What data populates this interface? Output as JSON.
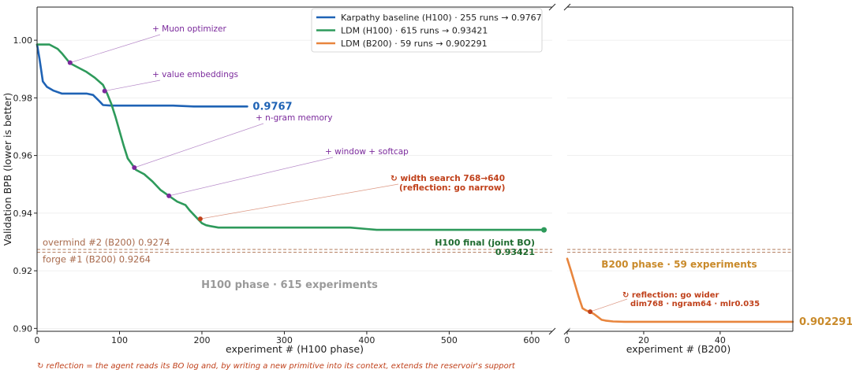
{
  "chart_data": [
    {
      "type": "line",
      "xlabel": "experiment #   (H100 phase)",
      "ylabel": "Validation BPB  (lower is better)",
      "xlim": [
        0,
        625
      ],
      "ylim": [
        0.899,
        1.0115
      ],
      "xticks": [
        0,
        100,
        200,
        300,
        400,
        500,
        600
      ],
      "yticks": [
        0.9,
        0.92,
        0.94,
        0.96,
        0.98,
        1.0
      ],
      "ytick_labels": [
        "0.90",
        "0.92",
        "0.94",
        "0.96",
        "0.98",
        "1.00"
      ],
      "grid": "horizontal",
      "legend": "top-right",
      "series": [
        {
          "name": "Karpathy baseline (H100)",
          "legend_label": "Karpathy baseline (H100)  ·  255 runs  →  0.9767",
          "color": "#1f63b5",
          "x": [
            0,
            3,
            7,
            12,
            20,
            30,
            45,
            60,
            68,
            75,
            80,
            90,
            110,
            130,
            150,
            165,
            190,
            220,
            255
          ],
          "y": [
            0.9985,
            0.9935,
            0.9857,
            0.9838,
            0.9825,
            0.9815,
            0.9815,
            0.9815,
            0.981,
            0.979,
            0.9775,
            0.9773,
            0.9773,
            0.9773,
            0.9773,
            0.9773,
            0.977,
            0.977,
            0.977
          ],
          "end_label": "0.9767"
        },
        {
          "name": "LDM (H100)",
          "legend_label": "LDM (H100)  ·  615 runs  →  0.93421",
          "color": "#2e9a5b",
          "x": [
            0,
            5,
            15,
            25,
            30,
            40,
            50,
            60,
            70,
            80,
            85,
            90,
            95,
            100,
            105,
            110,
            115,
            120,
            130,
            140,
            150,
            160,
            170,
            180,
            185,
            190,
            195,
            200,
            205,
            210,
            220,
            240,
            260,
            300,
            350,
            380,
            400,
            412,
            450,
            500,
            550,
            615
          ],
          "y": [
            0.9985,
            0.9985,
            0.9985,
            0.997,
            0.9955,
            0.992,
            0.9905,
            0.989,
            0.987,
            0.9845,
            0.9815,
            0.978,
            0.9735,
            0.9685,
            0.9635,
            0.959,
            0.957,
            0.955,
            0.9535,
            0.951,
            0.948,
            0.946,
            0.944,
            0.9428,
            0.941,
            0.9395,
            0.938,
            0.9365,
            0.9358,
            0.9355,
            0.935,
            0.935,
            0.935,
            0.935,
            0.935,
            0.935,
            0.9345,
            0.9342,
            0.9342,
            0.9342,
            0.9342,
            0.9342
          ],
          "end_value": 615
        }
      ],
      "milestones": [
        {
          "x": 40,
          "y": 0.9922,
          "label": "+ Muon optimizer",
          "color": "#7b2a9c"
        },
        {
          "x": 82,
          "y": 0.9824,
          "label": "+ value embeddings",
          "color": "#7b2a9c"
        },
        {
          "x": 118,
          "y": 0.9558,
          "label": "+ n-gram memory",
          "color": "#7b2a9c"
        },
        {
          "x": 160,
          "y": 0.946,
          "label": "+ window + softcap",
          "color": "#7b2a9c"
        },
        {
          "x": 198,
          "y": 0.938,
          "label": "↻ width search 768→640",
          "label2": "(reflection: go narrow)",
          "color": "#c0411b"
        }
      ],
      "reference_lines": [
        {
          "y": 0.9274,
          "label": "overmind #2 (B200)  0.9274",
          "color": "#b0785a"
        },
        {
          "y": 0.9264,
          "label": "forge #1 (B200)  0.9264",
          "color": "#b0785a"
        }
      ],
      "annotations": {
        "final_label": "H100 final (joint BO)",
        "final_value": "0.93421",
        "final_color": "#1d6a2e",
        "phase_label": "H100 phase  ·  615 experiments"
      }
    },
    {
      "type": "line",
      "xlabel": "experiment #   (B200)",
      "xlim": [
        0,
        59
      ],
      "ylim": [
        0.899,
        1.0115
      ],
      "xticks": [
        0,
        20,
        40
      ],
      "grid": "horizontal",
      "series": [
        {
          "name": "LDM (B200)",
          "legend_label": "LDM (B200)  ·  59 runs  →  0.902291",
          "color": "#e8853d",
          "x": [
            0,
            1,
            2,
            3,
            4,
            5,
            6,
            7,
            8,
            9,
            10,
            12,
            15,
            20,
            30,
            40,
            50,
            59
          ],
          "y": [
            0.9242,
            0.92,
            0.9155,
            0.911,
            0.907,
            0.9062,
            0.9057,
            0.905,
            0.904,
            0.903,
            0.9027,
            0.9024,
            0.9023,
            0.9023,
            0.9023,
            0.9023,
            0.9023,
            0.9023
          ],
          "end_label": "0.902291"
        }
      ],
      "milestones": [
        {
          "x": 6,
          "y": 0.9058,
          "label": "↻ reflection: go wider",
          "label2": "dim768 · ngram64 · mlr0.035",
          "color": "#c0411b"
        }
      ],
      "reference_lines": [
        {
          "y": 0.9274,
          "color": "#b0785a"
        },
        {
          "y": 0.9264,
          "color": "#b0785a"
        }
      ],
      "annotations": {
        "phase_label": "B200 phase  ·  59 experiments",
        "phase_color": "#c98a2a"
      }
    }
  ],
  "footnote": "↻ reflection = the agent reads its BO log and, by writing a new primitive into its context, extends the reservoir's support"
}
